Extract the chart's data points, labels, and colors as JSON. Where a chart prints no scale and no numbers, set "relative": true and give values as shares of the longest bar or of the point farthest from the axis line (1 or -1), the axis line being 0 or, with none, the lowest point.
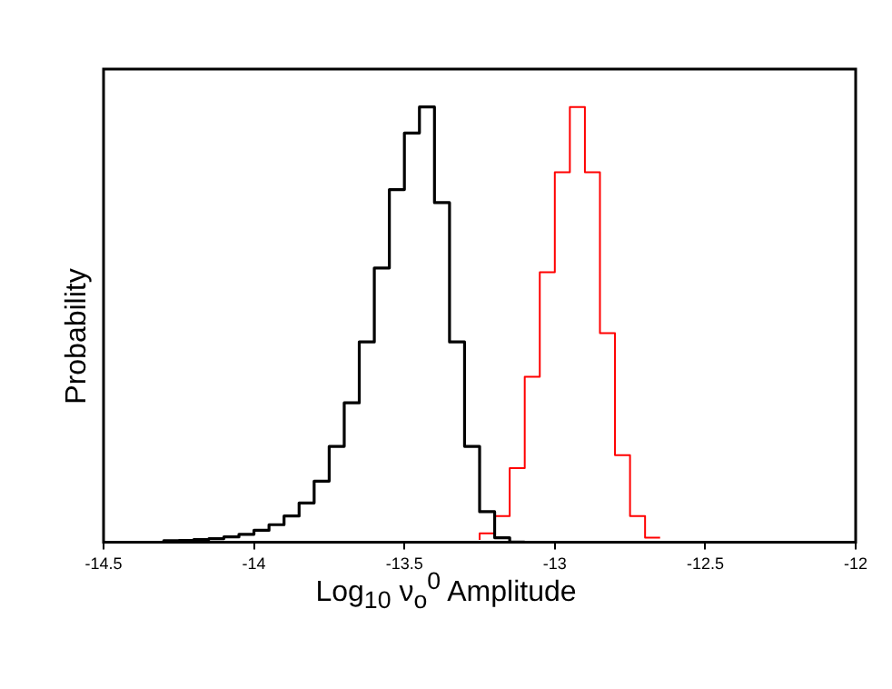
{
  "chart_data": {
    "type": "step",
    "relative": true,
    "xlabel": "Log$_{10}$ ν$_{o}$$^{0}$ Amplitude",
    "ylabel": "Probability",
    "xlim": [
      -14.5,
      -12
    ],
    "xticks": [
      -14.5,
      -14,
      -13.5,
      -13,
      -12.5,
      -12
    ],
    "grid": false,
    "legend": false,
    "x": [
      -14.3,
      -14.25,
      -14.2,
      -14.15,
      -14.1,
      -14.05,
      -14,
      -13.95,
      -13.9,
      -13.85,
      -13.8,
      -13.75,
      -13.7,
      -13.65,
      -13.6,
      -13.55,
      -13.5,
      -13.45,
      -13.4,
      -13.35,
      -13.3,
      -13.25,
      -13.2,
      -13.15,
      -13.1,
      -13.05,
      -13,
      -12.95,
      -12.9,
      -12.85,
      -12.8,
      -12.75,
      -12.7,
      -12.65
    ],
    "series": [
      {
        "color": "#000000",
        "values": [
          0.002,
          0.003,
          0.004,
          0.006,
          0.008,
          0.012,
          0.018,
          0.027,
          0.04,
          0.06,
          0.09,
          0.14,
          0.22,
          0.32,
          0.46,
          0.63,
          0.81,
          0.94,
          1,
          0.78,
          0.46,
          0.22,
          0.07,
          0.01,
          0,
          null,
          null,
          null,
          null,
          null,
          null,
          null,
          null,
          null
        ]
      },
      {
        "color": "#ff0000",
        "values": [
          null,
          null,
          null,
          null,
          null,
          null,
          null,
          null,
          null,
          null,
          null,
          null,
          null,
          null,
          null,
          null,
          null,
          null,
          null,
          null,
          null,
          0.005,
          0.02,
          0.06,
          0.17,
          0.38,
          0.62,
          0.85,
          1,
          0.85,
          0.48,
          0.2,
          0.06,
          0.01
        ]
      }
    ]
  }
}
